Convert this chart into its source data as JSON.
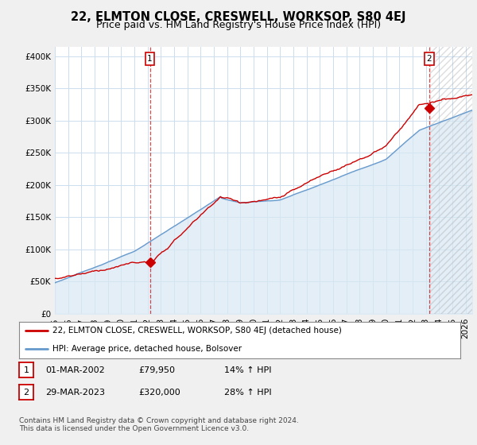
{
  "title": "22, ELMTON CLOSE, CRESWELL, WORKSOP, S80 4EJ",
  "subtitle": "Price paid vs. HM Land Registry's House Price Index (HPI)",
  "ylabel_ticks": [
    "£0",
    "£50K",
    "£100K",
    "£150K",
    "£200K",
    "£250K",
    "£300K",
    "£350K",
    "£400K"
  ],
  "ytick_values": [
    0,
    50000,
    100000,
    150000,
    200000,
    250000,
    300000,
    350000,
    400000
  ],
  "ylim": [
    0,
    415000
  ],
  "xlim_start": 1995.0,
  "xlim_end": 2026.5,
  "red_line_color": "#cc0000",
  "blue_line_color": "#6699cc",
  "blue_fill_color": "#d8e8f5",
  "sale1_x": 2002.17,
  "sale1_y": 79950,
  "sale2_x": 2023.25,
  "sale2_y": 320000,
  "legend_red": "22, ELMTON CLOSE, CRESWELL, WORKSOP, S80 4EJ (detached house)",
  "legend_blue": "HPI: Average price, detached house, Bolsover",
  "table_row1": [
    "1",
    "01-MAR-2002",
    "£79,950",
    "14% ↑ HPI"
  ],
  "table_row2": [
    "2",
    "29-MAR-2023",
    "£320,000",
    "28% ↑ HPI"
  ],
  "footnote1": "Contains HM Land Registry data © Crown copyright and database right 2024.",
  "footnote2": "This data is licensed under the Open Government Licence v3.0.",
  "bg_color": "#f0f0f0",
  "plot_bg_color": "#ffffff",
  "grid_color": "#ccddee",
  "title_fontsize": 10.5,
  "subtitle_fontsize": 9,
  "tick_fontsize": 7.5,
  "xtick_years": [
    1995,
    1996,
    1997,
    1998,
    1999,
    2000,
    2001,
    2002,
    2003,
    2004,
    2005,
    2006,
    2007,
    2008,
    2009,
    2010,
    2011,
    2012,
    2013,
    2014,
    2015,
    2016,
    2017,
    2018,
    2019,
    2020,
    2021,
    2022,
    2023,
    2024,
    2025,
    2026
  ],
  "hatch_start": 2023.25
}
